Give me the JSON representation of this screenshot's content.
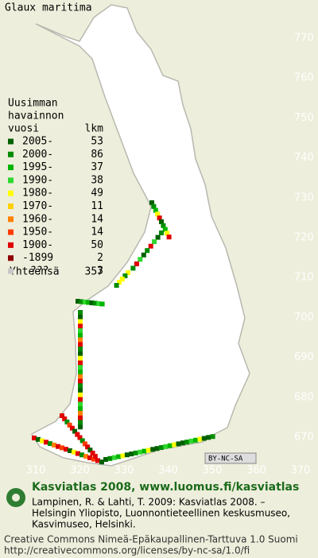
{
  "title": "Glaux maritima",
  "legend": {
    "heading": [
      "Uusimman",
      "havainnon"
    ],
    "col_label": "vuosi",
    "col_count": "lkm",
    "rows": [
      {
        "label": "2005-",
        "count": 53,
        "color": "#006000"
      },
      {
        "label": "2000-",
        "count": 86,
        "color": "#008c00"
      },
      {
        "label": "1995-",
        "count": 37,
        "color": "#00b400"
      },
      {
        "label": "1990-",
        "count": 38,
        "color": "#2ed82e"
      },
      {
        "label": "1980-",
        "count": 49,
        "color": "#ffff00"
      },
      {
        "label": "1970-",
        "count": 11,
        "color": "#ffd000"
      },
      {
        "label": "1960-",
        "count": 14,
        "color": "#ff8000"
      },
      {
        "label": "1950-",
        "count": 14,
        "color": "#ff3c00"
      },
      {
        "label": "1900-",
        "count": 50,
        "color": "#e00000"
      },
      {
        "label": "-1899",
        "count": 2,
        "color": "#900000"
      },
      {
        "label": "???",
        "count": 3,
        "color": "#c8c8c8"
      }
    ],
    "total_label": "Yhteensä",
    "total": 357
  },
  "north_labels": [
    770,
    760,
    750,
    740,
    730,
    720,
    710,
    700,
    690,
    680,
    670
  ],
  "east_labels": [
    310,
    320,
    330,
    340,
    350,
    360,
    370
  ],
  "license_badge": "BY-NC-SA",
  "footer": {
    "site": "Kasviatlas 2008, www.luomus.fi/kasviatlas",
    "citation": [
      "Lampinen, R. & Lahti, T. 2009: Kasviatlas 2008. –",
      "Helsingin Yliopisto, Luonnontieteellinen keskusmuseo,",
      "Kasvimuseo, Helsinki."
    ],
    "license": [
      "Creative Commons Nimeä-Epäkaupallinen-Tarttuva 1.0 Suomi",
      "http://creativecommons.org/licenses/by-nc-sa/1.0/fi"
    ]
  }
}
